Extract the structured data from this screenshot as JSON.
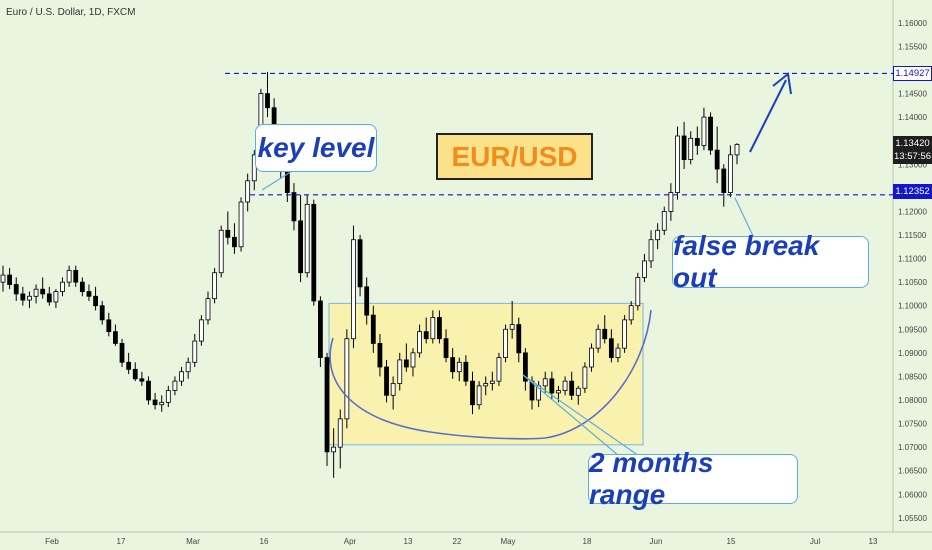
{
  "header": {
    "symbol": "Euro / U.S. Dollar, 1D, FXCM"
  },
  "annotations": {
    "title": "EUR/USD",
    "key_level": "key level",
    "false_break": "false break out",
    "range": "2 months range"
  },
  "price_tags": {
    "resistance": "1.14927",
    "current": "1.13420",
    "countdown": "13:57:56",
    "support": "1.12352"
  },
  "colors": {
    "background": "#e9f5df",
    "bull": "#ffffff",
    "bear": "#000000",
    "level_line": "#1515cc",
    "range_fill": "#fbf2a6",
    "range_border": "#6aa9e6",
    "curve": "#5b6ec8",
    "arrow": "#1a3fb8"
  },
  "chart_data": {
    "type": "candlestick",
    "ylim": [
      1.052,
      1.164
    ],
    "y_ticks": [
      "1.16000",
      "1.15500",
      "1.15000",
      "1.14500",
      "1.14000",
      "1.13500",
      "1.13000",
      "1.12500",
      "1.12000",
      "1.11500",
      "1.11000",
      "1.10500",
      "1.10000",
      "1.09500",
      "1.09000",
      "1.08500",
      "1.08000",
      "1.07500",
      "1.07000",
      "1.06500",
      "1.06000",
      "1.05500"
    ],
    "x_ticks": [
      "Feb",
      "17",
      "Mar",
      "16",
      "Apr",
      "13",
      "22",
      "May",
      "18",
      "Jun",
      "15",
      "Jul",
      "13"
    ],
    "levels": [
      1.14927,
      1.12352
    ],
    "range_box": [
      1.0705,
      1.1005
    ],
    "candles": [
      [
        1.105,
        1.1085,
        1.103,
        1.1065
      ],
      [
        1.1065,
        1.108,
        1.1035,
        1.1045
      ],
      [
        1.1045,
        1.106,
        1.101,
        1.1025
      ],
      [
        1.1025,
        1.104,
        1.1,
        1.1012
      ],
      [
        1.1012,
        1.103,
        1.0995,
        1.102
      ],
      [
        1.102,
        1.1045,
        1.1005,
        1.1035
      ],
      [
        1.1035,
        1.106,
        1.1015,
        1.1025
      ],
      [
        1.1025,
        1.104,
        1.1,
        1.1008
      ],
      [
        1.1008,
        1.1035,
        1.0995,
        1.103
      ],
      [
        1.103,
        1.106,
        1.102,
        1.105
      ],
      [
        1.105,
        1.1085,
        1.104,
        1.1075
      ],
      [
        1.1075,
        1.1085,
        1.104,
        1.105
      ],
      [
        1.105,
        1.106,
        1.102,
        1.103
      ],
      [
        1.103,
        1.1045,
        1.101,
        1.102
      ],
      [
        1.102,
        1.104,
        1.099,
        1.1
      ],
      [
        1.1,
        1.101,
        1.096,
        1.097
      ],
      [
        1.097,
        1.0985,
        1.0935,
        1.0945
      ],
      [
        1.0945,
        1.096,
        1.0915,
        1.092
      ],
      [
        1.092,
        1.093,
        1.087,
        1.088
      ],
      [
        1.088,
        1.09,
        1.0855,
        1.0865
      ],
      [
        1.0865,
        1.088,
        1.084,
        1.0845
      ],
      [
        1.0845,
        1.086,
        1.083,
        1.084
      ],
      [
        1.084,
        1.085,
        1.079,
        1.08
      ],
      [
        1.08,
        1.0815,
        1.078,
        1.079
      ],
      [
        1.079,
        1.081,
        1.0775,
        1.0795
      ],
      [
        1.0795,
        1.083,
        1.0785,
        1.082
      ],
      [
        1.082,
        1.085,
        1.081,
        1.084
      ],
      [
        1.084,
        1.087,
        1.083,
        1.086
      ],
      [
        1.086,
        1.089,
        1.0845,
        1.088
      ],
      [
        1.088,
        1.094,
        1.087,
        1.0925
      ],
      [
        1.0925,
        1.098,
        1.0915,
        1.097
      ],
      [
        1.097,
        1.103,
        1.096,
        1.1015
      ],
      [
        1.1015,
        1.108,
        1.1005,
        1.107
      ],
      [
        1.107,
        1.117,
        1.106,
        1.116
      ],
      [
        1.116,
        1.12,
        1.113,
        1.1145
      ],
      [
        1.1145,
        1.1175,
        1.111,
        1.1125
      ],
      [
        1.1125,
        1.123,
        1.1115,
        1.122
      ],
      [
        1.122,
        1.128,
        1.12,
        1.1265
      ],
      [
        1.1265,
        1.133,
        1.1245,
        1.132
      ],
      [
        1.132,
        1.146,
        1.13,
        1.145
      ],
      [
        1.145,
        1.1496,
        1.14,
        1.142
      ],
      [
        1.142,
        1.144,
        1.131,
        1.133
      ],
      [
        1.133,
        1.138,
        1.127,
        1.129
      ],
      [
        1.129,
        1.131,
        1.122,
        1.124
      ],
      [
        1.124,
        1.126,
        1.116,
        1.118
      ],
      [
        1.118,
        1.1235,
        1.105,
        1.107
      ],
      [
        1.107,
        1.1235,
        1.106,
        1.1215
      ],
      [
        1.1215,
        1.1225,
        1.1,
        1.101
      ],
      [
        1.101,
        1.102,
        1.087,
        1.089
      ],
      [
        1.089,
        1.09,
        1.066,
        1.069
      ],
      [
        1.069,
        1.074,
        1.0635,
        1.07
      ],
      [
        1.07,
        1.078,
        1.0655,
        1.076
      ],
      [
        1.076,
        1.095,
        1.074,
        1.093
      ],
      [
        1.093,
        1.117,
        1.091,
        1.114
      ],
      [
        1.114,
        1.115,
        1.102,
        1.104
      ],
      [
        1.104,
        1.106,
        1.096,
        1.098
      ],
      [
        1.098,
        1.1,
        1.09,
        1.092
      ],
      [
        1.092,
        1.094,
        1.085,
        1.087
      ],
      [
        1.087,
        1.0885,
        1.0795,
        1.081
      ],
      [
        1.081,
        1.085,
        1.078,
        1.0835
      ],
      [
        1.0835,
        1.09,
        1.082,
        1.0885
      ],
      [
        1.0885,
        1.092,
        1.086,
        1.087
      ],
      [
        1.087,
        1.091,
        1.085,
        1.09
      ],
      [
        1.09,
        1.096,
        1.089,
        1.0945
      ],
      [
        1.0945,
        1.0975,
        1.092,
        1.093
      ],
      [
        1.093,
        1.099,
        1.092,
        1.0975
      ],
      [
        1.0975,
        1.099,
        1.092,
        1.093
      ],
      [
        1.093,
        1.095,
        1.088,
        1.089
      ],
      [
        1.089,
        1.091,
        1.0845,
        1.086
      ],
      [
        1.086,
        1.089,
        1.084,
        1.088
      ],
      [
        1.088,
        1.0895,
        1.083,
        1.084
      ],
      [
        1.084,
        1.086,
        1.077,
        1.079
      ],
      [
        1.079,
        1.084,
        1.078,
        1.083
      ],
      [
        1.083,
        1.085,
        1.081,
        1.0835
      ],
      [
        1.0835,
        1.086,
        1.082,
        1.084
      ],
      [
        1.084,
        1.09,
        1.083,
        1.089
      ],
      [
        1.089,
        1.096,
        1.088,
        1.095
      ],
      [
        1.095,
        1.101,
        1.093,
        1.096
      ],
      [
        1.096,
        1.0975,
        1.088,
        1.09
      ],
      [
        1.09,
        1.091,
        1.082,
        1.084
      ],
      [
        1.084,
        1.085,
        1.078,
        1.08
      ],
      [
        1.08,
        1.084,
        1.0785,
        1.083
      ],
      [
        1.083,
        1.086,
        1.0815,
        1.0845
      ],
      [
        1.0845,
        1.086,
        1.08,
        1.0815
      ],
      [
        1.0815,
        1.083,
        1.0795,
        1.082
      ],
      [
        1.082,
        1.085,
        1.081,
        1.084
      ],
      [
        1.084,
        1.086,
        1.08,
        1.081
      ],
      [
        1.081,
        1.083,
        1.079,
        1.0825
      ],
      [
        1.0825,
        1.088,
        1.0815,
        1.087
      ],
      [
        1.087,
        1.092,
        1.086,
        1.091
      ],
      [
        1.091,
        1.096,
        1.09,
        1.095
      ],
      [
        1.095,
        1.098,
        1.092,
        1.093
      ],
      [
        1.093,
        1.095,
        1.088,
        1.089
      ],
      [
        1.089,
        1.092,
        1.088,
        1.091
      ],
      [
        1.091,
        1.098,
        1.09,
        1.097
      ],
      [
        1.097,
        1.101,
        1.096,
        1.1
      ],
      [
        1.1,
        1.107,
        1.099,
        1.106
      ],
      [
        1.106,
        1.111,
        1.105,
        1.1095
      ],
      [
        1.1095,
        1.116,
        1.108,
        1.114
      ],
      [
        1.114,
        1.1175,
        1.112,
        1.116
      ],
      [
        1.116,
        1.121,
        1.115,
        1.12
      ],
      [
        1.12,
        1.126,
        1.118,
        1.124
      ],
      [
        1.124,
        1.138,
        1.1225,
        1.136
      ],
      [
        1.136,
        1.139,
        1.129,
        1.131
      ],
      [
        1.131,
        1.137,
        1.13,
        1.1355
      ],
      [
        1.1355,
        1.138,
        1.132,
        1.134
      ],
      [
        1.134,
        1.142,
        1.133,
        1.14
      ],
      [
        1.14,
        1.141,
        1.132,
        1.133
      ],
      [
        1.133,
        1.138,
        1.126,
        1.129
      ],
      [
        1.129,
        1.13,
        1.121,
        1.124
      ],
      [
        1.124,
        1.134,
        1.123,
        1.132
      ],
      [
        1.132,
        1.1345,
        1.13,
        1.1342
      ]
    ]
  }
}
